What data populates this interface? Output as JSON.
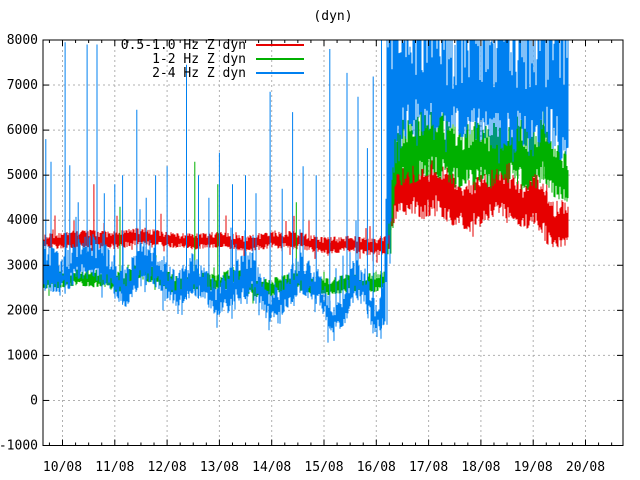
{
  "colors": {
    "red": "#e60000",
    "green": "#00b000",
    "blue": "#0080f0",
    "grid": "#b0b0b0",
    "axis": "#000000",
    "text": "#000000"
  },
  "chart_data": {
    "type": "line",
    "title": "(dyn)",
    "xlabel": "",
    "ylabel": "",
    "grid": true,
    "legend_position": "top-left",
    "ylim": [
      -1000,
      8000
    ],
    "ytick_step": 1000,
    "x_tick_labels": [
      "10/08",
      "11/08",
      "12/08",
      "13/08",
      "14/08",
      "15/08",
      "16/08",
      "17/08",
      "18/08",
      "19/08",
      "20/08"
    ],
    "x_minor_per_day": 4,
    "x_axis_range_days": [
      -0.373,
      10.72
    ],
    "data_time_range_days": [
      -0.36,
      9.67
    ],
    "series": [
      {
        "name": "0.5-1.0 Hz Z dyn",
        "color_key": "red",
        "envelope": [
          [
            -0.36,
            3350,
            3700
          ],
          [
            0.5,
            3400,
            3800
          ],
          [
            1.0,
            3350,
            3750
          ],
          [
            1.5,
            3450,
            3850
          ],
          [
            2.0,
            3400,
            3750
          ],
          [
            2.5,
            3350,
            3700
          ],
          [
            3.0,
            3400,
            3750
          ],
          [
            3.5,
            3300,
            3650
          ],
          [
            4.0,
            3380,
            3780
          ],
          [
            4.5,
            3350,
            3750
          ],
          [
            5.0,
            3250,
            3620
          ],
          [
            5.5,
            3300,
            3660
          ],
          [
            5.9,
            3200,
            3600
          ],
          [
            6.17,
            3250,
            3650
          ],
          [
            6.2,
            3100,
            5300
          ],
          [
            6.35,
            4000,
            5300
          ],
          [
            6.6,
            4200,
            5500
          ],
          [
            6.9,
            4000,
            5200
          ],
          [
            7.15,
            4200,
            5400
          ],
          [
            7.4,
            3900,
            5100
          ],
          [
            7.7,
            3800,
            4900
          ],
          [
            8.0,
            3900,
            5000
          ],
          [
            8.3,
            4100,
            5300
          ],
          [
            8.55,
            3900,
            5100
          ],
          [
            8.8,
            3700,
            4800
          ],
          [
            9.0,
            3900,
            5200
          ],
          [
            9.2,
            3600,
            4800
          ],
          [
            9.35,
            3300,
            4400
          ],
          [
            9.55,
            3400,
            4500
          ],
          [
            9.67,
            3450,
            4350
          ]
        ],
        "spikes": [
          [
            0.6,
            4800
          ],
          [
            8.5,
            5500
          ],
          [
            9.26,
            5800
          ]
        ]
      },
      {
        "name": "1-2 Hz Z dyn",
        "color_key": "green",
        "envelope": [
          [
            -0.36,
            2450,
            2850
          ],
          [
            0.3,
            2550,
            2950
          ],
          [
            0.7,
            2500,
            2950
          ],
          [
            1.2,
            2400,
            2850
          ],
          [
            1.5,
            2700,
            3200
          ],
          [
            1.8,
            2550,
            3000
          ],
          [
            2.2,
            2350,
            2750
          ],
          [
            2.6,
            2450,
            2850
          ],
          [
            3.0,
            2400,
            2800
          ],
          [
            3.3,
            2550,
            3000
          ],
          [
            3.7,
            2250,
            2650
          ],
          [
            4.1,
            2350,
            2750
          ],
          [
            4.5,
            2450,
            2850
          ],
          [
            5.0,
            2300,
            2700
          ],
          [
            5.4,
            2400,
            2800
          ],
          [
            5.8,
            2350,
            2800
          ],
          [
            6.1,
            2450,
            2900
          ],
          [
            6.17,
            2500,
            2950
          ],
          [
            6.2,
            2300,
            6200
          ],
          [
            6.4,
            4700,
            6200
          ],
          [
            6.7,
            4800,
            6300
          ],
          [
            7.0,
            5000,
            6500
          ],
          [
            7.3,
            4900,
            6400
          ],
          [
            7.6,
            4700,
            6100
          ],
          [
            7.9,
            4800,
            6200
          ],
          [
            8.2,
            4700,
            6100
          ],
          [
            8.45,
            4900,
            6400
          ],
          [
            8.7,
            4800,
            6300
          ],
          [
            9.0,
            4600,
            6000
          ],
          [
            9.2,
            4900,
            6500
          ],
          [
            9.4,
            4500,
            5800
          ],
          [
            9.67,
            4400,
            5500
          ]
        ],
        "spikes": [
          [
            0.6,
            3560
          ],
          [
            1.1,
            4300
          ],
          [
            2.53,
            5300
          ],
          [
            2.97,
            4800
          ],
          [
            4.47,
            4400
          ],
          [
            6.28,
            7700
          ],
          [
            8.7,
            6300
          ],
          [
            9.2,
            6600
          ]
        ]
      },
      {
        "name": "2-4 Hz Z dyn",
        "color_key": "blue",
        "envelope": [
          [
            -0.36,
            2500,
            3600
          ],
          [
            0.0,
            2300,
            3200
          ],
          [
            0.3,
            2700,
            3600
          ],
          [
            0.6,
            2700,
            3700
          ],
          [
            0.9,
            2500,
            3400
          ],
          [
            1.2,
            2050,
            2900
          ],
          [
            1.45,
            2500,
            3500
          ],
          [
            1.7,
            2600,
            3600
          ],
          [
            2.0,
            2300,
            3100
          ],
          [
            2.2,
            2000,
            2800
          ],
          [
            2.45,
            2350,
            3300
          ],
          [
            2.7,
            2200,
            3000
          ],
          [
            2.95,
            1850,
            2600
          ],
          [
            3.2,
            2100,
            3000
          ],
          [
            3.6,
            2300,
            3400
          ],
          [
            4.0,
            1700,
            2400
          ],
          [
            4.2,
            1900,
            2700
          ],
          [
            4.55,
            2400,
            3300
          ],
          [
            4.9,
            2100,
            2900
          ],
          [
            5.15,
            1500,
            2150
          ],
          [
            5.35,
            1550,
            2200
          ],
          [
            5.6,
            2300,
            3300
          ],
          [
            5.8,
            2000,
            2900
          ],
          [
            6.0,
            1450,
            2200
          ],
          [
            6.17,
            1700,
            2800
          ],
          [
            6.2,
            1500,
            8000
          ],
          [
            6.35,
            5200,
            8000
          ],
          [
            6.6,
            5800,
            8000
          ],
          [
            7.0,
            6000,
            8000
          ],
          [
            7.4,
            5900,
            8000
          ],
          [
            7.8,
            5800,
            8000
          ],
          [
            8.2,
            5600,
            8000
          ],
          [
            8.6,
            5500,
            8000
          ],
          [
            9.0,
            5400,
            8000
          ],
          [
            9.3,
            5700,
            8000
          ],
          [
            9.5,
            5300,
            8000
          ],
          [
            9.67,
            5500,
            8000
          ]
        ],
        "spikes": [
          [
            -0.32,
            5800
          ],
          [
            -0.22,
            5300
          ],
          [
            0.05,
            7950
          ],
          [
            0.14,
            5220
          ],
          [
            0.3,
            4400
          ],
          [
            0.47,
            7900
          ],
          [
            0.66,
            7900
          ],
          [
            0.8,
            4600
          ],
          [
            1.0,
            4800
          ],
          [
            1.15,
            5000
          ],
          [
            1.42,
            6450
          ],
          [
            1.6,
            4500
          ],
          [
            1.78,
            5000
          ],
          [
            2.0,
            5200
          ],
          [
            2.37,
            7450
          ],
          [
            2.6,
            5000
          ],
          [
            2.8,
            4500
          ],
          [
            3.0,
            5500
          ],
          [
            3.25,
            4800
          ],
          [
            3.5,
            5000
          ],
          [
            3.7,
            4600
          ],
          [
            3.97,
            6850
          ],
          [
            4.2,
            4700
          ],
          [
            4.4,
            6400
          ],
          [
            4.6,
            5200
          ],
          [
            4.85,
            5000
          ],
          [
            5.11,
            7800
          ],
          [
            5.44,
            7270
          ],
          [
            5.65,
            6740
          ],
          [
            5.83,
            5600
          ],
          [
            5.94,
            7190
          ],
          [
            6.1,
            8000
          ]
        ]
      }
    ]
  }
}
